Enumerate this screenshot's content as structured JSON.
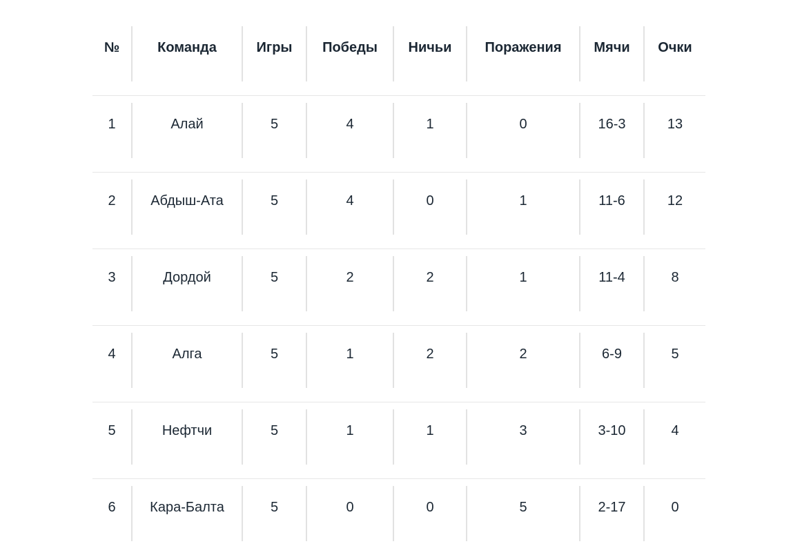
{
  "table": {
    "headers": [
      "№",
      "Команда",
      "Игры",
      "Победы",
      "Ничьи",
      "Поражения",
      "Мячи",
      "Очки"
    ],
    "rows": [
      [
        "1",
        "Алай",
        "5",
        "4",
        "1",
        "0",
        "16-3",
        "13"
      ],
      [
        "2",
        "Абдыш-Ата",
        "5",
        "4",
        "0",
        "1",
        "11-6",
        "12"
      ],
      [
        "3",
        "Дордой",
        "5",
        "2",
        "2",
        "1",
        "11-4",
        "8"
      ],
      [
        "4",
        "Алга",
        "5",
        "1",
        "2",
        "2",
        "6-9",
        "5"
      ],
      [
        "5",
        "Нефтчи",
        "5",
        "1",
        "1",
        "3",
        "3-10",
        "4"
      ],
      [
        "6",
        "Кара-Балта",
        "5",
        "0",
        "0",
        "5",
        "2-17",
        "0"
      ]
    ]
  }
}
